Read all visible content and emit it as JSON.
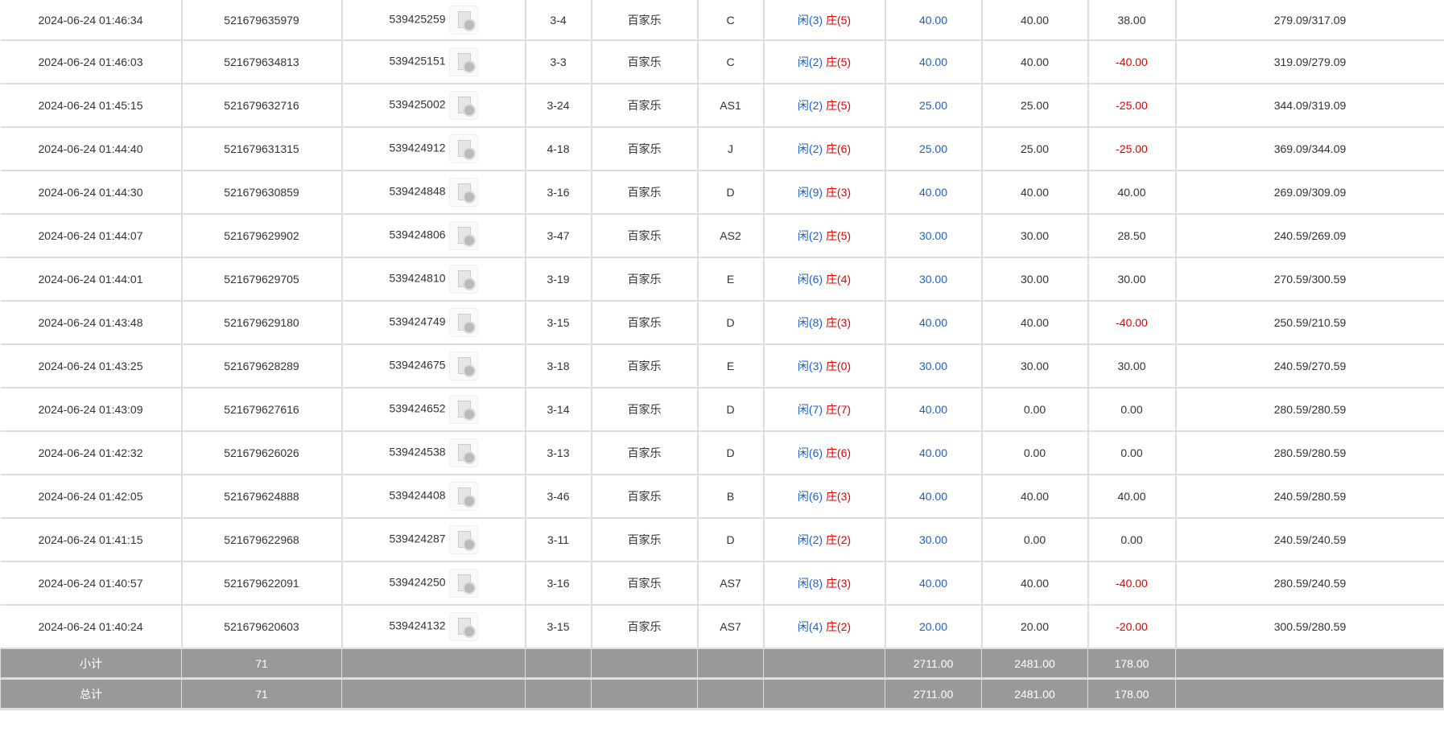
{
  "rows": [
    {
      "time": "2024-06-24 01:46:34",
      "order": "521679635979",
      "round": "539425259",
      "table": "3-4",
      "game": "百家乐",
      "shoe": "C",
      "player": "闲(3)",
      "banker": "庄(5)",
      "bet": "40.00",
      "valid": "40.00",
      "win": "38.00",
      "balance": "279.09/317.09"
    },
    {
      "time": "2024-06-24 01:46:03",
      "order": "521679634813",
      "round": "539425151",
      "table": "3-3",
      "game": "百家乐",
      "shoe": "C",
      "player": "闲(2)",
      "banker": "庄(5)",
      "bet": "40.00",
      "valid": "40.00",
      "win": "-40.00",
      "balance": "319.09/279.09"
    },
    {
      "time": "2024-06-24 01:45:15",
      "order": "521679632716",
      "round": "539425002",
      "table": "3-24",
      "game": "百家乐",
      "shoe": "AS1",
      "player": "闲(2)",
      "banker": "庄(5)",
      "bet": "25.00",
      "valid": "25.00",
      "win": "-25.00",
      "balance": "344.09/319.09"
    },
    {
      "time": "2024-06-24 01:44:40",
      "order": "521679631315",
      "round": "539424912",
      "table": "4-18",
      "game": "百家乐",
      "shoe": "J",
      "player": "闲(2)",
      "banker": "庄(6)",
      "bet": "25.00",
      "valid": "25.00",
      "win": "-25.00",
      "balance": "369.09/344.09"
    },
    {
      "time": "2024-06-24 01:44:30",
      "order": "521679630859",
      "round": "539424848",
      "table": "3-16",
      "game": "百家乐",
      "shoe": "D",
      "player": "闲(9)",
      "banker": "庄(3)",
      "bet": "40.00",
      "valid": "40.00",
      "win": "40.00",
      "balance": "269.09/309.09"
    },
    {
      "time": "2024-06-24 01:44:07",
      "order": "521679629902",
      "round": "539424806",
      "table": "3-47",
      "game": "百家乐",
      "shoe": "AS2",
      "player": "闲(2)",
      "banker": "庄(5)",
      "bet": "30.00",
      "valid": "30.00",
      "win": "28.50",
      "balance": "240.59/269.09"
    },
    {
      "time": "2024-06-24 01:44:01",
      "order": "521679629705",
      "round": "539424810",
      "table": "3-19",
      "game": "百家乐",
      "shoe": "E",
      "player": "闲(6)",
      "banker": "庄(4)",
      "bet": "30.00",
      "valid": "30.00",
      "win": "30.00",
      "balance": "270.59/300.59"
    },
    {
      "time": "2024-06-24 01:43:48",
      "order": "521679629180",
      "round": "539424749",
      "table": "3-15",
      "game": "百家乐",
      "shoe": "D",
      "player": "闲(8)",
      "banker": "庄(3)",
      "bet": "40.00",
      "valid": "40.00",
      "win": "-40.00",
      "balance": "250.59/210.59"
    },
    {
      "time": "2024-06-24 01:43:25",
      "order": "521679628289",
      "round": "539424675",
      "table": "3-18",
      "game": "百家乐",
      "shoe": "E",
      "player": "闲(3)",
      "banker": "庄(0)",
      "bet": "30.00",
      "valid": "30.00",
      "win": "30.00",
      "balance": "240.59/270.59"
    },
    {
      "time": "2024-06-24 01:43:09",
      "order": "521679627616",
      "round": "539424652",
      "table": "3-14",
      "game": "百家乐",
      "shoe": "D",
      "player": "闲(7)",
      "banker": "庄(7)",
      "bet": "40.00",
      "valid": "0.00",
      "win": "0.00",
      "balance": "280.59/280.59"
    },
    {
      "time": "2024-06-24 01:42:32",
      "order": "521679626026",
      "round": "539424538",
      "table": "3-13",
      "game": "百家乐",
      "shoe": "D",
      "player": "闲(6)",
      "banker": "庄(6)",
      "bet": "40.00",
      "valid": "0.00",
      "win": "0.00",
      "balance": "280.59/280.59"
    },
    {
      "time": "2024-06-24 01:42:05",
      "order": "521679624888",
      "round": "539424408",
      "table": "3-46",
      "game": "百家乐",
      "shoe": "B",
      "player": "闲(6)",
      "banker": "庄(3)",
      "bet": "40.00",
      "valid": "40.00",
      "win": "40.00",
      "balance": "240.59/280.59"
    },
    {
      "time": "2024-06-24 01:41:15",
      "order": "521679622968",
      "round": "539424287",
      "table": "3-11",
      "game": "百家乐",
      "shoe": "D",
      "player": "闲(2)",
      "banker": "庄(2)",
      "bet": "30.00",
      "valid": "0.00",
      "win": "0.00",
      "balance": "240.59/240.59"
    },
    {
      "time": "2024-06-24 01:40:57",
      "order": "521679622091",
      "round": "539424250",
      "table": "3-16",
      "game": "百家乐",
      "shoe": "AS7",
      "player": "闲(8)",
      "banker": "庄(3)",
      "bet": "40.00",
      "valid": "40.00",
      "win": "-40.00",
      "balance": "280.59/240.59"
    },
    {
      "time": "2024-06-24 01:40:24",
      "order": "521679620603",
      "round": "539424132",
      "table": "3-15",
      "game": "百家乐",
      "shoe": "AS7",
      "player": "闲(4)",
      "banker": "庄(2)",
      "bet": "20.00",
      "valid": "20.00",
      "win": "-20.00",
      "balance": "300.59/280.59"
    }
  ],
  "subtotal": {
    "label": "小计",
    "count": "71",
    "bet": "2711.00",
    "valid": "2481.00",
    "win": "178.00"
  },
  "total": {
    "label": "总计",
    "count": "71",
    "bet": "2711.00",
    "valid": "2481.00",
    "win": "178.00"
  },
  "colors": {
    "player": "#1a5fd6",
    "banker": "#e00000",
    "negative": "#e00000",
    "footer_bg": "#999999"
  },
  "icons": {
    "round_detail": "video-file-icon"
  }
}
